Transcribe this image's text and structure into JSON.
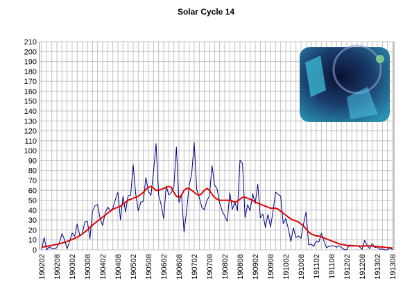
{
  "chart_data": {
    "type": "line",
    "title": "Solar Cycle 14",
    "categories": [
      "190202",
      null,
      null,
      null,
      null,
      null,
      "190208",
      null,
      null,
      null,
      null,
      null,
      "190302",
      null,
      null,
      null,
      null,
      null,
      "190308",
      null,
      null,
      null,
      null,
      null,
      "190402",
      null,
      null,
      null,
      null,
      null,
      "190408",
      null,
      null,
      null,
      null,
      null,
      "190502",
      null,
      null,
      null,
      null,
      null,
      "190508",
      null,
      null,
      null,
      null,
      null,
      "190602",
      null,
      null,
      null,
      null,
      null,
      "190608",
      null,
      null,
      null,
      null,
      null,
      "190702",
      null,
      null,
      null,
      null,
      null,
      "190708",
      null,
      null,
      null,
      null,
      null,
      "190802",
      null,
      null,
      null,
      null,
      null,
      "190808",
      null,
      null,
      null,
      null,
      null,
      "190902",
      null,
      null,
      null,
      null,
      null,
      "190908",
      null,
      null,
      null,
      null,
      null,
      "191002",
      null,
      null,
      null,
      null,
      null,
      "191008",
      null,
      null,
      null,
      null,
      null,
      "191102",
      null,
      null,
      null,
      null,
      null,
      "191108",
      null,
      null,
      null,
      null,
      null,
      "191202",
      null,
      null,
      null,
      null,
      null,
      "191208",
      null,
      null,
      null,
      null,
      null,
      "191302",
      null,
      null,
      null,
      null,
      null,
      "191308"
    ],
    "series": [
      {
        "color": "#000080",
        "width": 1,
        "values": [
          0.2,
          12.4,
          0.0,
          2.8,
          1.4,
          0.9,
          2.3,
          7.6,
          16.3,
          10.3,
          1.1,
          8.3,
          17.0,
          13.5,
          26.1,
          14.6,
          16.3,
          27.9,
          28.8,
          11.1,
          38.9,
          44.5,
          45.6,
          31.6,
          24.5,
          37.2,
          43.0,
          39.5,
          41.9,
          50.6,
          58.2,
          30.1,
          54.2,
          38.0,
          54.6,
          54.8,
          85.8,
          56.5,
          39.3,
          48.0,
          49.0,
          73.0,
          58.8,
          55.0,
          78.7,
          107.2,
          55.5,
          45.5,
          31.3,
          64.5,
          55.3,
          57.7,
          63.2,
          103.6,
          47.7,
          56.1,
          17.8,
          38.9,
          64.7,
          76.4,
          108.2,
          60.7,
          52.6,
          42.9,
          40.4,
          49.7,
          54.3,
          85.0,
          65.4,
          61.5,
          47.3,
          39.2,
          33.9,
          28.7,
          57.6,
          40.8,
          48.1,
          39.5,
          90.5,
          86.9,
          32.3,
          45.5,
          39.5,
          56.7,
          46.6,
          66.3,
          32.3,
          36.0,
          22.6,
          35.8,
          23.1,
          38.8,
          58.4,
          55.8,
          54.2,
          26.4,
          31.5,
          21.4,
          8.4,
          22.2,
          12.3,
          14.1,
          11.5,
          26.2,
          38.3,
          4.9,
          5.8,
          3.4,
          9.0,
          7.8,
          16.5,
          9.0,
          2.2,
          3.5,
          4.0,
          4.0,
          2.6,
          4.2,
          2.2,
          0.3,
          0.0,
          4.9,
          4.5,
          4.4,
          4.1,
          3.0,
          0.3,
          9.5,
          4.6,
          1.1,
          6.4,
          2.3,
          2.9,
          0.5,
          0.9,
          0.0,
          0.0,
          1.7,
          0.2
        ]
      },
      {
        "color": "#e00000",
        "width": 2,
        "values": [
          2.7,
          3.0,
          3.5,
          4.0,
          4.5,
          5.0,
          5.5,
          6.0,
          6.8,
          7.6,
          8.5,
          9.5,
          10.5,
          11.5,
          12.8,
          14.2,
          16.0,
          18.0,
          20.0,
          22.5,
          25,
          27,
          29,
          31,
          33,
          35,
          37,
          39,
          41,
          42,
          43,
          44,
          46,
          48,
          50,
          51,
          52,
          53,
          54,
          56,
          58,
          61,
          63,
          64,
          62,
          60,
          60,
          61,
          62,
          63,
          64,
          63,
          58,
          54,
          53,
          55,
          60,
          62,
          62,
          60,
          58,
          56,
          55,
          57,
          60,
          62,
          60,
          56,
          53,
          51,
          50,
          50,
          50,
          50,
          50,
          49,
          48,
          49,
          51,
          53,
          53,
          52,
          51,
          50,
          48,
          47,
          46,
          45,
          44,
          43,
          42,
          42,
          42,
          41,
          39,
          37,
          35,
          33,
          31,
          30,
          29,
          28,
          26,
          24,
          21,
          18,
          16,
          15,
          14,
          14,
          13,
          12,
          11,
          10,
          9,
          8,
          7,
          6,
          5.5,
          5,
          4.5,
          4.2,
          4,
          4,
          3.9,
          3.8,
          3.8,
          3.9,
          4,
          4,
          3.8,
          3.5,
          3.2,
          3,
          2.8,
          2.5,
          2.2,
          2,
          1.8
        ]
      }
    ],
    "ylim": [
      0,
      210
    ],
    "yticks": [
      0,
      10,
      20,
      30,
      40,
      50,
      60,
      70,
      80,
      90,
      100,
      110,
      120,
      130,
      140,
      150,
      160,
      170,
      180,
      190,
      200,
      210
    ],
    "grid": true
  }
}
